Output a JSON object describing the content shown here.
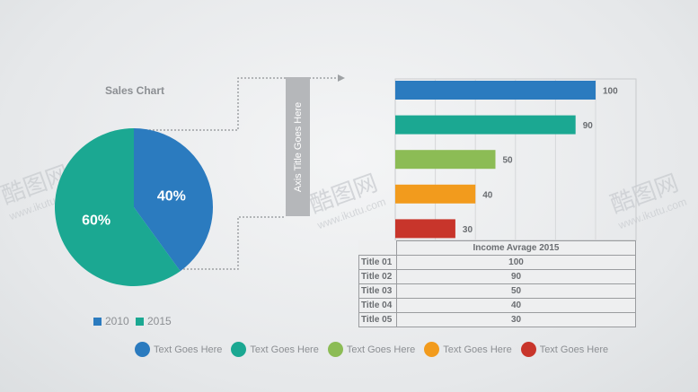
{
  "pie_chart": {
    "title": "Sales Chart",
    "legend": [
      {
        "label": "2010",
        "color": "#2b7bbf"
      },
      {
        "label": "2015",
        "color": "#1ba892"
      }
    ]
  },
  "axis_label": "Axis Title Goes Here",
  "bar_chart": {
    "table_header": "Income Avrage 2015",
    "rows": [
      {
        "label": "Title 01",
        "value": "100"
      },
      {
        "label": "Title 02",
        "value": "90"
      },
      {
        "label": "Title 03",
        "value": "50"
      },
      {
        "label": "Title 04",
        "value": "40"
      },
      {
        "label": "Title 05",
        "value": "30"
      }
    ]
  },
  "bottom_legend": [
    {
      "label": "Text Goes Here",
      "color": "#2b7bbf"
    },
    {
      "label": "Text Goes Here",
      "color": "#1ba892"
    },
    {
      "label": "Text Goes Here",
      "color": "#8cbc55"
    },
    {
      "label": "Text Goes Here",
      "color": "#f29b1d"
    },
    {
      "label": "Text Goes Here",
      "color": "#c8352b"
    }
  ],
  "watermark": {
    "brand": "酷图网",
    "url": "www.ikutu.com"
  },
  "chart_data": [
    {
      "type": "pie",
      "title": "Sales Chart",
      "slices": [
        {
          "name": "2010",
          "value": 40,
          "label": "40%",
          "color": "#2b7bbf"
        },
        {
          "name": "2015",
          "value": 60,
          "label": "60%",
          "color": "#1ba892"
        }
      ]
    },
    {
      "type": "bar",
      "orientation": "horizontal",
      "categories": [
        "Title 01",
        "Title 02",
        "Title 03",
        "Title 04",
        "Title 05"
      ],
      "values": [
        100,
        90,
        50,
        40,
        30
      ],
      "colors": [
        "#2b7bbf",
        "#1ba892",
        "#8cbc55",
        "#f29b1d",
        "#c8352b"
      ],
      "xlim": [
        0,
        100
      ],
      "grid": true
    }
  ]
}
